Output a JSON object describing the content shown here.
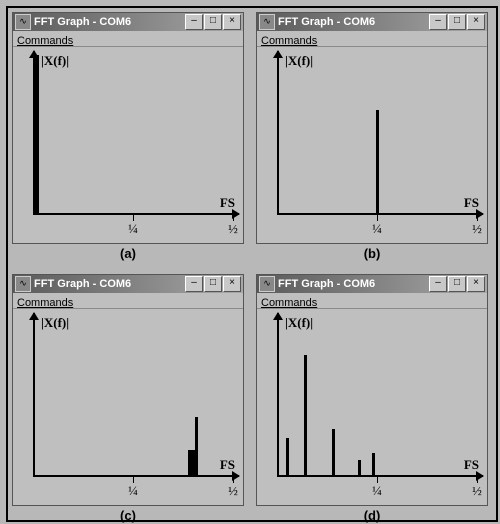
{
  "figure": {
    "background": "#b8b8b8",
    "panel_labels": [
      "(a)",
      "(b)",
      "(c)",
      "(d)"
    ]
  },
  "window_common": {
    "title": "FFT Graph - COM6",
    "icon_text": "∿",
    "menu": "Commands",
    "ylabel": "|X(f)|",
    "fs_label": "FS",
    "xticks": [
      {
        "frac": 0.5,
        "label": "¼"
      },
      {
        "frac": 1.0,
        "label": "½"
      }
    ],
    "title_buttons": [
      "–",
      "□",
      "×"
    ]
  },
  "plots": {
    "a": {
      "type": "fft-bars",
      "bars": [
        {
          "x_frac": 0.02,
          "width": 4,
          "height_frac": 0.95
        }
      ]
    },
    "b": {
      "type": "fft-bars",
      "bars": [
        {
          "x_frac": 0.5,
          "width": 3,
          "height_frac": 0.62
        }
      ]
    },
    "c": {
      "type": "fft-bars",
      "bars": [
        {
          "x_frac": 0.8,
          "width": 10,
          "height_frac": 0.15
        },
        {
          "x_frac": 0.815,
          "width": 3,
          "height_frac": 0.35
        }
      ]
    },
    "d": {
      "type": "fft-bars",
      "bars": [
        {
          "x_frac": 0.05,
          "width": 3,
          "height_frac": 0.22
        },
        {
          "x_frac": 0.14,
          "width": 3,
          "height_frac": 0.72
        },
        {
          "x_frac": 0.28,
          "width": 3,
          "height_frac": 0.28
        },
        {
          "x_frac": 0.41,
          "width": 3,
          "height_frac": 0.09
        },
        {
          "x_frac": 0.48,
          "width": 3,
          "height_frac": 0.13
        }
      ]
    }
  },
  "colors": {
    "bar": "#000000",
    "axis": "#000000",
    "panel_bg": "#bfbfbf",
    "titlebar_from": "#5a5a5a",
    "titlebar_to": "#a8a8a8",
    "title_text": "#ffffff"
  }
}
